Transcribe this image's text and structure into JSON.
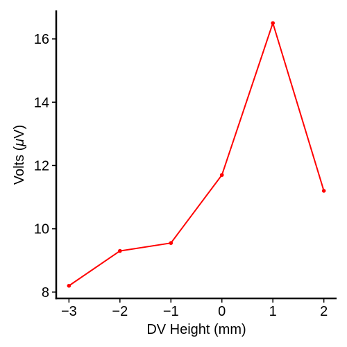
{
  "chart_data": {
    "type": "line",
    "xlabel": "DV Height (mm)",
    "ylabel_prefix": "Volts (",
    "ylabel_mu": "μ",
    "ylabel_suffix": "V)",
    "x": [
      -3,
      -2,
      -1,
      0,
      1,
      2
    ],
    "series": [
      {
        "values": [
          8.2,
          9.3,
          9.55,
          11.7,
          16.5,
          11.2
        ],
        "color": "#ff0000"
      }
    ],
    "xlim": [
      -3.25,
      2.25
    ],
    "ylim": [
      7.8,
      16.9
    ],
    "xticks": [
      -3,
      -2,
      -1,
      0,
      1,
      2
    ],
    "xtick_labels": [
      "−3",
      "−2",
      "−1",
      "0",
      "1",
      "2"
    ],
    "yticks": [
      8,
      10,
      12,
      14,
      16
    ],
    "ytick_labels": [
      "8",
      "10",
      "12",
      "14",
      "16"
    ],
    "grid": false,
    "legend": "none"
  }
}
